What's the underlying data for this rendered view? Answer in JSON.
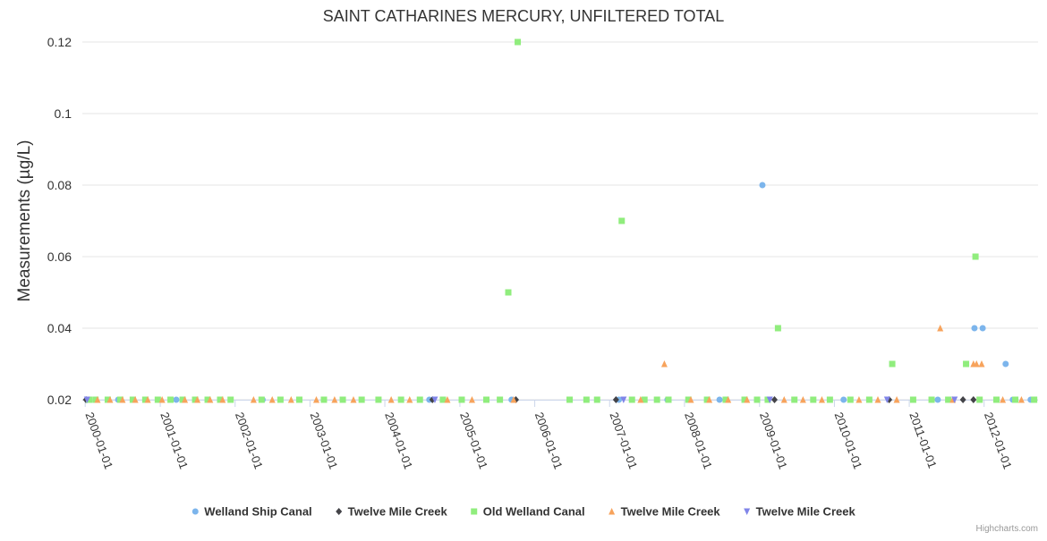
{
  "chart_data": {
    "type": "scatter",
    "title": "SAINT CATHARINES MERCURY, UNFILTERED TOTAL",
    "ylabel": "Measurements (µg/L)",
    "ylim": [
      0.02,
      0.12
    ],
    "yticks": [
      "0.02",
      "0.04",
      "0.06",
      "0.08",
      "0.1",
      "0.12"
    ],
    "xlim": [
      "1999-12-18",
      "2012-09-20"
    ],
    "xticks": [
      "2000-01-01",
      "2001-01-01",
      "2002-01-01",
      "2003-01-01",
      "2004-01-01",
      "2005-01-01",
      "2006-01-01",
      "2007-01-01",
      "2008-01-01",
      "2009-01-01",
      "2010-01-01",
      "2011-01-01",
      "2012-01-01"
    ],
    "grid": true,
    "legend_position": "bottom",
    "credits": "Highcharts.com",
    "series": [
      {
        "name": "Welland Ship Canal",
        "marker": "circle",
        "color": "#7cb5ec",
        "points": [
          [
            "2000-01-15",
            0.02
          ],
          [
            "2000-06-10",
            0.02
          ],
          [
            "2001-03-20",
            0.02
          ],
          [
            "2002-05-15",
            0.02
          ],
          [
            "2004-08-05",
            0.02
          ],
          [
            "2005-09-10",
            0.02
          ],
          [
            "2007-02-15",
            0.02
          ],
          [
            "2007-10-10",
            0.02
          ],
          [
            "2008-06-20",
            0.02
          ],
          [
            "2009-01-15",
            0.08
          ],
          [
            "2010-02-15",
            0.02
          ],
          [
            "2011-05-20",
            0.02
          ],
          [
            "2011-11-15",
            0.04
          ],
          [
            "2011-12-25",
            0.04
          ],
          [
            "2012-04-15",
            0.03
          ],
          [
            "2012-05-20",
            0.02
          ],
          [
            "2012-08-15",
            0.02
          ]
        ]
      },
      {
        "name": "Twelve Mile Creek",
        "marker": "diamond",
        "color": "#434348",
        "points": [
          [
            "2000-01-05",
            0.02
          ],
          [
            "2004-08-20",
            0.02
          ],
          [
            "2005-10-01",
            0.02
          ],
          [
            "2007-02-01",
            0.02
          ],
          [
            "2009-03-15",
            0.02
          ],
          [
            "2010-09-25",
            0.02
          ],
          [
            "2011-09-20",
            0.02
          ],
          [
            "2011-11-10",
            0.02
          ]
        ]
      },
      {
        "name": "Old Welland Canal",
        "marker": "square",
        "color": "#90ed7d",
        "points": [
          [
            "2000-01-20",
            0.02
          ],
          [
            "2000-02-20",
            0.02
          ],
          [
            "2000-04-20",
            0.02
          ],
          [
            "2000-06-20",
            0.02
          ],
          [
            "2000-08-20",
            0.02
          ],
          [
            "2000-10-20",
            0.02
          ],
          [
            "2000-12-20",
            0.02
          ],
          [
            "2001-02-20",
            0.02
          ],
          [
            "2001-04-20",
            0.02
          ],
          [
            "2001-06-20",
            0.02
          ],
          [
            "2001-08-20",
            0.02
          ],
          [
            "2001-10-20",
            0.02
          ],
          [
            "2001-12-10",
            0.02
          ],
          [
            "2002-05-10",
            0.02
          ],
          [
            "2002-08-10",
            0.02
          ],
          [
            "2002-11-10",
            0.02
          ],
          [
            "2003-03-10",
            0.02
          ],
          [
            "2003-06-10",
            0.02
          ],
          [
            "2003-09-10",
            0.02
          ],
          [
            "2003-12-01",
            0.02
          ],
          [
            "2004-03-20",
            0.02
          ],
          [
            "2004-06-20",
            0.02
          ],
          [
            "2004-10-10",
            0.02
          ],
          [
            "2005-01-10",
            0.02
          ],
          [
            "2005-05-10",
            0.02
          ],
          [
            "2005-07-15",
            0.02
          ],
          [
            "2005-08-25",
            0.05
          ],
          [
            "2005-10-10",
            0.12
          ],
          [
            "2006-06-20",
            0.02
          ],
          [
            "2006-09-10",
            0.02
          ],
          [
            "2006-11-01",
            0.02
          ],
          [
            "2007-03-01",
            0.07
          ],
          [
            "2007-04-20",
            0.02
          ],
          [
            "2007-06-20",
            0.02
          ],
          [
            "2007-08-20",
            0.02
          ],
          [
            "2007-10-15",
            0.02
          ],
          [
            "2008-01-20",
            0.02
          ],
          [
            "2008-04-20",
            0.02
          ],
          [
            "2008-07-20",
            0.02
          ],
          [
            "2008-10-20",
            0.02
          ],
          [
            "2008-12-20",
            0.02
          ],
          [
            "2009-02-10",
            0.02
          ],
          [
            "2009-04-01",
            0.04
          ],
          [
            "2009-06-20",
            0.02
          ],
          [
            "2009-09-20",
            0.02
          ],
          [
            "2009-12-10",
            0.02
          ],
          [
            "2010-03-20",
            0.02
          ],
          [
            "2010-06-20",
            0.02
          ],
          [
            "2010-10-10",
            0.03
          ],
          [
            "2011-01-20",
            0.02
          ],
          [
            "2011-04-20",
            0.02
          ],
          [
            "2011-07-10",
            0.02
          ],
          [
            "2011-10-05",
            0.03
          ],
          [
            "2011-11-20",
            0.06
          ],
          [
            "2011-12-10",
            0.02
          ],
          [
            "2012-03-01",
            0.02
          ],
          [
            "2012-06-01",
            0.02
          ],
          [
            "2012-09-01",
            0.02
          ]
        ]
      },
      {
        "name": "Twelve Mile Creek",
        "marker": "triangle",
        "color": "#f7a35c",
        "points": [
          [
            "2000-03-01",
            0.02
          ],
          [
            "2000-05-01",
            0.02
          ],
          [
            "2000-07-01",
            0.02
          ],
          [
            "2000-09-01",
            0.02
          ],
          [
            "2000-11-01",
            0.02
          ],
          [
            "2001-01-10",
            0.02
          ],
          [
            "2001-05-01",
            0.02
          ],
          [
            "2001-07-01",
            0.02
          ],
          [
            "2001-09-01",
            0.02
          ],
          [
            "2001-11-01",
            0.02
          ],
          [
            "2002-04-01",
            0.02
          ],
          [
            "2002-07-01",
            0.02
          ],
          [
            "2002-10-01",
            0.02
          ],
          [
            "2003-02-01",
            0.02
          ],
          [
            "2003-05-01",
            0.02
          ],
          [
            "2003-08-01",
            0.02
          ],
          [
            "2004-02-01",
            0.02
          ],
          [
            "2004-05-01",
            0.02
          ],
          [
            "2004-11-01",
            0.02
          ],
          [
            "2005-03-01",
            0.02
          ],
          [
            "2005-09-20",
            0.02
          ],
          [
            "2007-06-01",
            0.02
          ],
          [
            "2007-09-25",
            0.03
          ],
          [
            "2008-02-01",
            0.02
          ],
          [
            "2008-05-01",
            0.02
          ],
          [
            "2008-08-01",
            0.02
          ],
          [
            "2008-11-01",
            0.02
          ],
          [
            "2009-05-01",
            0.02
          ],
          [
            "2009-08-01",
            0.02
          ],
          [
            "2009-11-01",
            0.02
          ],
          [
            "2010-05-01",
            0.02
          ],
          [
            "2010-08-01",
            0.02
          ],
          [
            "2010-11-01",
            0.02
          ],
          [
            "2011-06-01",
            0.04
          ],
          [
            "2011-08-01",
            0.02
          ],
          [
            "2011-11-10",
            0.03
          ],
          [
            "2011-11-25",
            0.03
          ],
          [
            "2011-12-20",
            0.03
          ],
          [
            "2012-04-01",
            0.02
          ],
          [
            "2012-07-01",
            0.02
          ]
        ]
      },
      {
        "name": "Twelve Mile Creek",
        "marker": "triangle-down",
        "color": "#8085e9",
        "points": [
          [
            "2000-01-10",
            0.02
          ],
          [
            "2004-09-01",
            0.02
          ],
          [
            "2007-03-10",
            0.02
          ],
          [
            "2009-02-20",
            0.02
          ],
          [
            "2010-09-15",
            0.02
          ],
          [
            "2011-08-10",
            0.02
          ]
        ]
      }
    ]
  }
}
